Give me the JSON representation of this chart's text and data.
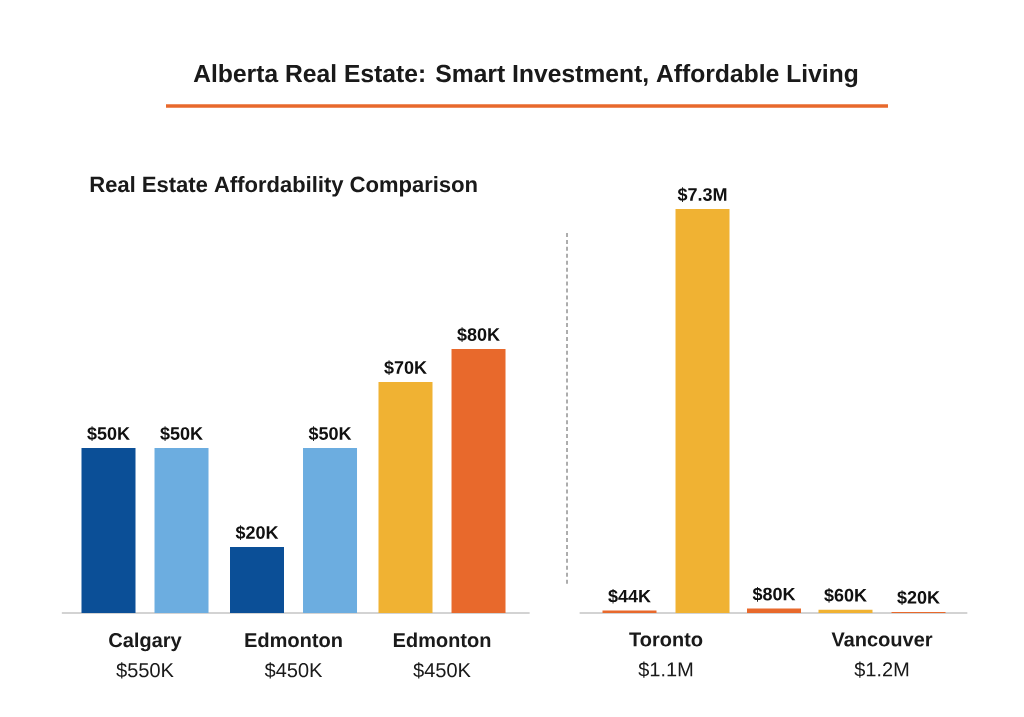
{
  "chart_data": [
    {
      "type": "bar",
      "title": "Alberta Real Estate: Smart Investment, Affordable Living",
      "subtitle": "Real Estate Affordability Comparison",
      "categories": [
        "**Calgary** $550K",
        "**Edmonton** $450K",
        "**Edmonton** $450K"
      ],
      "series": [
        {
          "colors": [
            "#0b4f97",
            "#0b4f97",
            "#f0b233"
          ],
          "values": [
            50000,
            20000,
            70000
          ],
          "value_labels": [
            "$50K",
            "$20K",
            "$70K"
          ]
        },
        {
          "colors": [
            "#6cade0",
            "#6cade0",
            "#e8692c"
          ],
          "values": [
            50000,
            50000,
            80000
          ],
          "value_labels": [
            "$50K",
            "$50K",
            "$80K"
          ]
        }
      ]
    },
    {
      "type": "bar",
      "categories": [
        "**Toronto** $1.1M",
        null,
        "**Vancouver** $1.2M"
      ],
      "series": [
        {
          "colors": [
            "#e8692c",
            "#e8692c",
            "#f0b233"
          ],
          "values": [
            44000,
            80000,
            60000
          ],
          "value_labels": [
            "$44K",
            "$80K",
            "$60K"
          ]
        },
        {
          "colors": [
            "#f0b233",
            null,
            "#e8692c"
          ],
          "values": [
            7300000,
            null,
            20000
          ],
          "value_labels": [
            "$7.3M",
            null,
            "$20K"
          ]
        }
      ]
    }
  ]
}
